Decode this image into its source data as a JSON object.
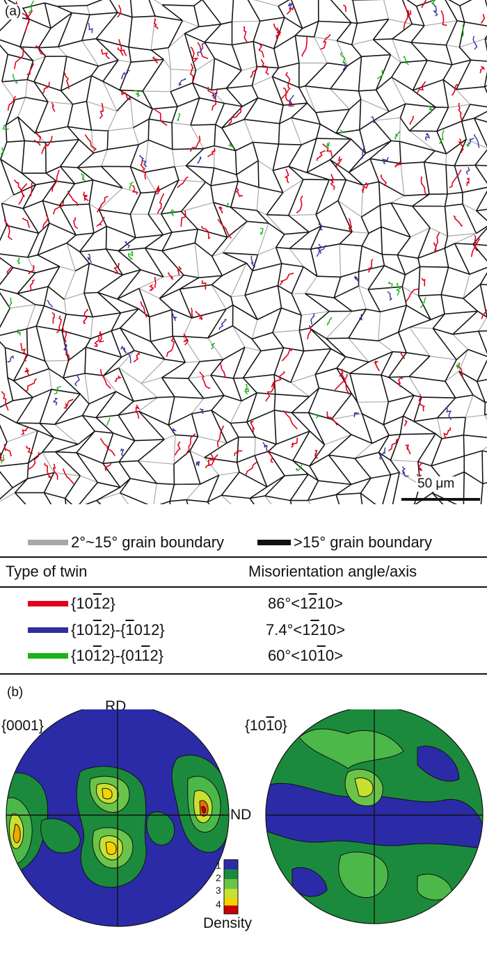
{
  "panel_a": {
    "label": "(a)",
    "scale_bar_label": "50 μm"
  },
  "boundary_legend": {
    "low_angle": {
      "label": "2°~15° grain boundary",
      "color": "#a8a8a8"
    },
    "high_angle": {
      "label": ">15° grain boundary",
      "color": "#111111"
    }
  },
  "twin_table": {
    "headers": [
      "Type of twin",
      "Misorientation angle/axis"
    ],
    "rows": [
      {
        "type": "{10-12}",
        "misorientation": "86°<1-210>",
        "color": "#e0001a"
      },
      {
        "type": "{10-12}-{-1012}",
        "misorientation": "7.4°<1-210>",
        "color": "#2e2e9e"
      },
      {
        "type": "{10-12}-{01-12}",
        "misorientation": "60°<10-10>",
        "color": "#18b418"
      }
    ]
  },
  "panel_b": {
    "label": "(b)",
    "rd_label": "RD",
    "nd_label": "ND",
    "pole_figures": [
      {
        "title": "{0001}"
      },
      {
        "title": "{10-10}"
      }
    ],
    "density_legend": {
      "title": "Density",
      "ticks": [
        "1",
        "2",
        "3",
        "4"
      ],
      "colors": [
        "#2b2ba8",
        "#1c8a3c",
        "#c8e030",
        "#f7d200",
        "#c80000"
      ]
    }
  }
}
